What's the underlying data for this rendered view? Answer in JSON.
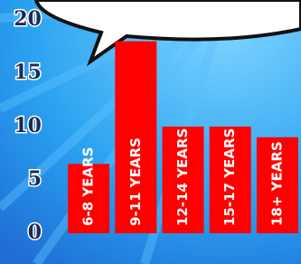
{
  "chart_data": {
    "type": "bar",
    "categories": [
      "6-8 YEARS",
      "9-11 YEARS",
      "12-14 YEARS",
      "15-17 YEARS",
      "18+ YEARS"
    ],
    "values": [
      6.5,
      18,
      10,
      10,
      9
    ],
    "color": "#ff0000",
    "ylim": [
      0,
      20
    ],
    "yticks": [
      0,
      5,
      10,
      15,
      20
    ]
  }
}
